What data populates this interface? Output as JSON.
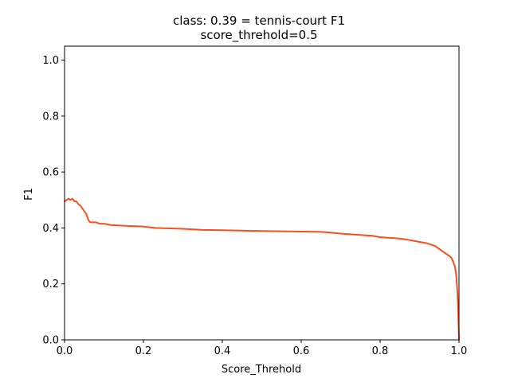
{
  "chart_data": {
    "type": "line",
    "title": "class: 0.39 = tennis-court F1",
    "subtitle": "score_threhold=0.5",
    "xlabel": "Score_Threhold",
    "ylabel": "F1",
    "xlim": [
      0.0,
      1.0
    ],
    "ylim": [
      0.0,
      1.05
    ],
    "xticks": [
      "0.0",
      "0.2",
      "0.4",
      "0.6",
      "0.8",
      "1.0"
    ],
    "yticks": [
      "0.0",
      "0.2",
      "0.4",
      "0.6",
      "0.8",
      "1.0"
    ],
    "grid": false,
    "series": [
      {
        "color": "#f4511e",
        "x": [
          0.0,
          0.005,
          0.01,
          0.015,
          0.02,
          0.025,
          0.03,
          0.035,
          0.04,
          0.045,
          0.05,
          0.055,
          0.06,
          0.065,
          0.07,
          0.08,
          0.09,
          0.1,
          0.12,
          0.15,
          0.2,
          0.23,
          0.3,
          0.35,
          0.4,
          0.5,
          0.6,
          0.65,
          0.67,
          0.7,
          0.75,
          0.78,
          0.8,
          0.85,
          0.87,
          0.9,
          0.92,
          0.94,
          0.95,
          0.96,
          0.97,
          0.98,
          0.985,
          0.99,
          0.993,
          0.996,
          0.998,
          1.0
        ],
        "y": [
          0.495,
          0.5,
          0.505,
          0.5,
          0.505,
          0.495,
          0.495,
          0.485,
          0.48,
          0.47,
          0.46,
          0.45,
          0.43,
          0.42,
          0.42,
          0.42,
          0.415,
          0.415,
          0.41,
          0.408,
          0.405,
          0.4,
          0.397,
          0.393,
          0.392,
          0.389,
          0.387,
          0.386,
          0.384,
          0.38,
          0.375,
          0.372,
          0.367,
          0.362,
          0.358,
          0.35,
          0.345,
          0.335,
          0.325,
          0.315,
          0.305,
          0.295,
          0.28,
          0.26,
          0.23,
          0.17,
          0.1,
          0.0
        ]
      }
    ]
  }
}
